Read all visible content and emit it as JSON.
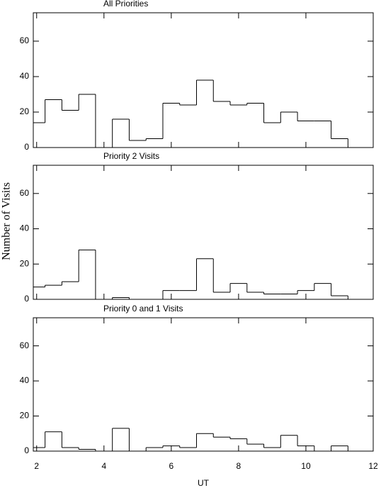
{
  "chart_data": [
    {
      "type": "histogram",
      "title": "All Priorities",
      "bins": [
        1.75,
        2.25,
        2.75,
        3.25,
        3.75,
        4.25,
        4.75,
        5.25,
        5.75,
        6.25,
        6.75,
        7.25,
        7.75,
        8.25,
        8.75,
        9.25,
        9.75,
        10.25,
        10.75,
        11.25
      ],
      "values": [
        14,
        27,
        21,
        30,
        0,
        16,
        4,
        5,
        25,
        24,
        38,
        26,
        24,
        25,
        14,
        20,
        15,
        15,
        5
      ],
      "xlim": [
        1.9,
        12
      ],
      "xticks": [
        2,
        4,
        6,
        8,
        10,
        12
      ],
      "ylim": [
        0,
        76
      ],
      "yticks": [
        0,
        20,
        40,
        60
      ],
      "color": "#000000"
    },
    {
      "type": "histogram",
      "title": "Priority 2 Visits",
      "ylabel": "Number of Visits",
      "bins": [
        1.75,
        2.25,
        2.75,
        3.25,
        3.75,
        4.25,
        4.75,
        5.25,
        5.75,
        6.25,
        6.75,
        7.25,
        7.75,
        8.25,
        8.75,
        9.25,
        9.75,
        10.25,
        10.75,
        11.25
      ],
      "values": [
        7,
        8,
        10,
        28,
        0,
        1,
        0,
        0,
        5,
        5,
        23,
        4,
        9,
        4,
        3,
        3,
        5,
        9,
        2
      ],
      "xlim": [
        1.9,
        12
      ],
      "xticks": [
        2,
        4,
        6,
        8,
        10,
        12
      ],
      "ylim": [
        0,
        76
      ],
      "yticks": [
        0,
        20,
        40,
        60
      ],
      "color": "#000000"
    },
    {
      "type": "histogram",
      "title": "Priority 0 and 1 Visits",
      "xlabel": "UT",
      "bins": [
        1.75,
        2.25,
        2.75,
        3.25,
        3.75,
        4.25,
        4.75,
        5.25,
        5.75,
        6.25,
        6.75,
        7.25,
        7.75,
        8.25,
        8.75,
        9.25,
        9.75,
        10.25,
        10.75,
        11.25
      ],
      "values": [
        2,
        11,
        2,
        1,
        0,
        13,
        0,
        2,
        3,
        2,
        10,
        8,
        7,
        4,
        2,
        9,
        3,
        0,
        3
      ],
      "xlim": [
        1.9,
        12
      ],
      "xticks": [
        2,
        4,
        6,
        8,
        10,
        12
      ],
      "ylim": [
        0,
        76
      ],
      "yticks": [
        0,
        20,
        40,
        60
      ],
      "color": "#000000"
    }
  ]
}
